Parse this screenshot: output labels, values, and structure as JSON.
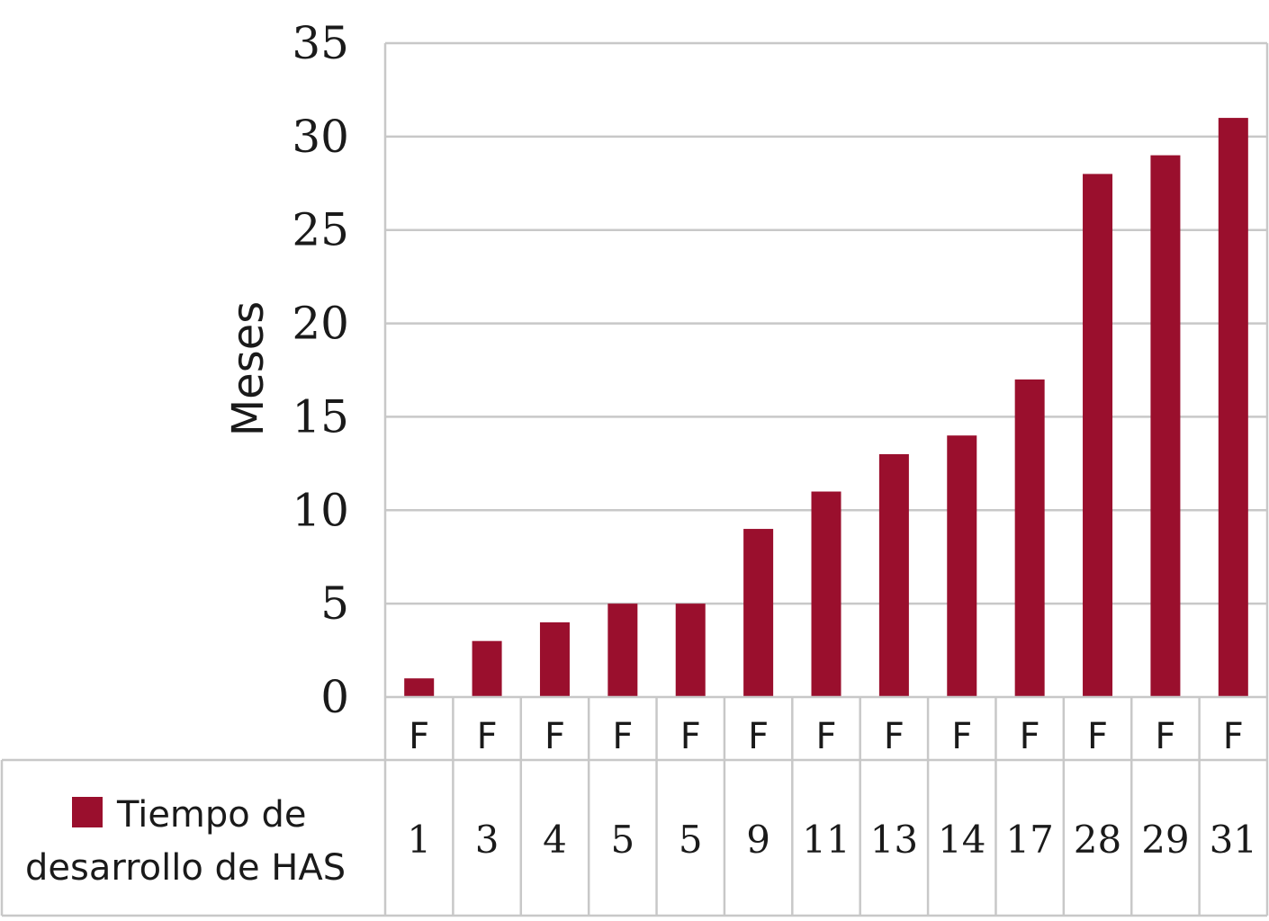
{
  "chart_data": {
    "type": "bar",
    "title": "",
    "xlabel": "",
    "ylabel": "Meses",
    "ylim": [
      0,
      35
    ],
    "yticks": [
      0,
      5,
      10,
      15,
      20,
      25,
      30,
      35
    ],
    "grid": true,
    "categories": [
      "F",
      "F",
      "F",
      "F",
      "F",
      "F",
      "F",
      "F",
      "F",
      "F",
      "F",
      "F",
      "F"
    ],
    "series": [
      {
        "name": "Tiempo de desarrollo de HAS",
        "color": "#9a0f2d",
        "values": [
          1,
          3,
          4,
          5,
          5,
          9,
          11,
          13,
          14,
          17,
          28,
          29,
          31
        ]
      }
    ],
    "legend_position": "bottom-left",
    "data_table": {
      "legend_label_line1": "Tiempo de",
      "legend_label_line2": "desarrollo de HAS",
      "values": [
        "1",
        "3",
        "4",
        "5",
        "5",
        "9",
        "11",
        "13",
        "14",
        "17",
        "28",
        "29",
        "31"
      ]
    }
  }
}
